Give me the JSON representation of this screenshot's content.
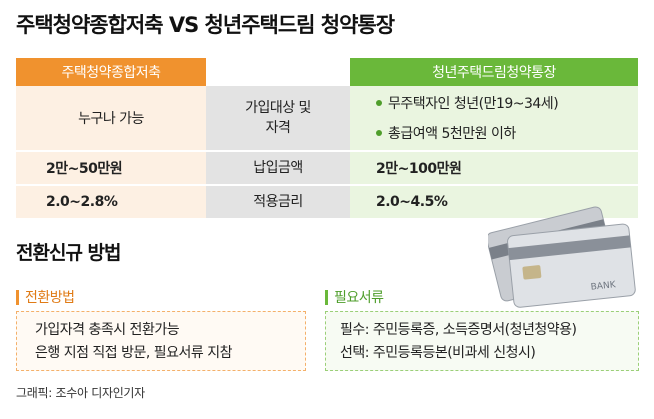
{
  "title": "주택청약종합저축 VS 청년주택드림 청약통장",
  "table": {
    "left_header": "주택청약종합저축",
    "right_header": "청년주택드림청약통장",
    "rows": [
      {
        "label": "가입대상 및 자격",
        "label_line1": "가입대상 및",
        "label_line2": "자격",
        "left": "누구나 가능",
        "right_bullets": [
          "무주택자인 청년(만19~34세)",
          "총급여액 5천만원 이하"
        ]
      },
      {
        "label": "납입금액",
        "left": "2만~50만원",
        "right": "2만~100만원"
      },
      {
        "label": "적용금리",
        "left": "2.0~2.8%",
        "right": "2.0~4.5%"
      }
    ]
  },
  "conversion": {
    "title": "전환신규 방법",
    "method": {
      "heading": "전환방법",
      "lines": [
        "가입자격 충족시 전환가능",
        "은행 지점 직접 방문, 필요서류 지참"
      ]
    },
    "documents": {
      "heading": "필요서류",
      "lines": [
        "필수: 주민등록증, 소득증명서(청년청약용)",
        "선택: 주민등록등본(비과세 신청시)"
      ]
    }
  },
  "card_text": "BANK",
  "credit": "그래픽: 조수아 디자인기자",
  "colors": {
    "orange": "#f0922e",
    "green": "#6ab83a",
    "left_bg": "#fdf0e3",
    "mid_bg": "#e3e3e3",
    "right_bg": "#eaf5e0"
  }
}
